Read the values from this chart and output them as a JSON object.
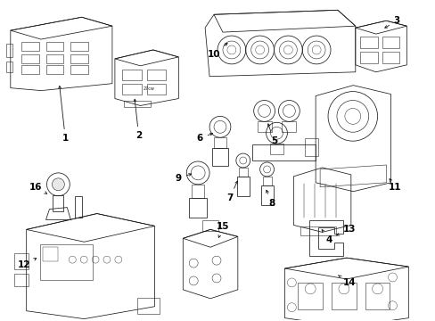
{
  "background_color": "#ffffff",
  "line_color": "#1a1a1a",
  "label_color": "#000000",
  "figsize": [
    4.89,
    3.6
  ],
  "dpi": 100,
  "lw": 0.55,
  "gray": "#888888",
  "light_gray": "#cccccc"
}
